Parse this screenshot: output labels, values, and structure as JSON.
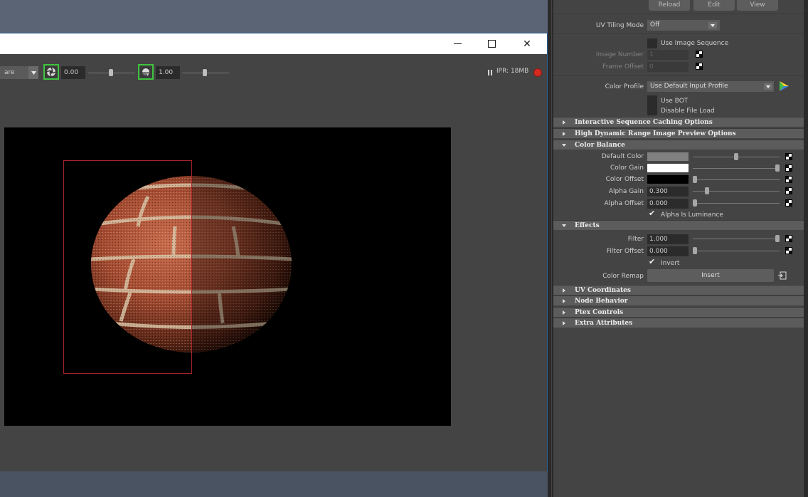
{
  "render_view": {
    "toolbar": {
      "camera_dropdown_value": "are",
      "exposure_value": "0.00",
      "gamma_value": "1.00",
      "ipr_status": "IPR: 18MB",
      "exposure_slider_level": 0.5,
      "gamma_slider_level": 0.5
    },
    "window_buttons": {
      "minimize": "—",
      "close": "✕"
    }
  },
  "attribute_editor": {
    "top_buttons": [
      "Reload",
      "Edit",
      "View"
    ],
    "uv_tiling_mode": {
      "label": "UV Tiling Mode",
      "value": "Off"
    },
    "use_image_sequence": {
      "label": "Use Image Sequence",
      "checked": false
    },
    "image_number": {
      "label": "Image Number",
      "value": "1"
    },
    "frame_offset": {
      "label": "Frame Offset",
      "value": "0"
    },
    "color_profile": {
      "label": "Color Profile",
      "value": "Use Default Input Profile"
    },
    "use_bot": {
      "label": "Use BOT",
      "checked": false
    },
    "disable_file_load": {
      "label": "Disable File Load",
      "checked": false
    },
    "sections": {
      "interactive_caching": "Interactive Sequence Caching Options",
      "hdr_preview": "High Dynamic Range Image Preview Options",
      "color_balance": "Color Balance",
      "effects": "Effects",
      "uv_coordinates": "UV Coordinates",
      "node_behavior": "Node Behavior",
      "ptex_controls": "Ptex Controls",
      "extra_attributes": "Extra Attributes"
    },
    "color_balance": {
      "default_color": {
        "label": "Default Color",
        "color": "#808080",
        "slider_level": 0.5
      },
      "color_gain": {
        "label": "Color Gain",
        "color": "#ffffff",
        "slider_level": 1.0
      },
      "color_offset": {
        "label": "Color Offset",
        "color": "#000000",
        "slider_level": 0.0
      },
      "alpha_gain": {
        "label": "Alpha Gain",
        "value": "0.300",
        "slider_level": 0.15
      },
      "alpha_offset": {
        "label": "Alpha Offset",
        "value": "0.000",
        "slider_level": 0.0
      },
      "alpha_is_luminance": {
        "label": "Alpha Is Luminance",
        "checked": true
      }
    },
    "effects": {
      "filter": {
        "label": "Filter",
        "value": "1.000",
        "slider_level": 1.0
      },
      "filter_offset": {
        "label": "Filter Offset",
        "value": "0.000",
        "slider_level": 0.0
      },
      "invert": {
        "label": "Invert",
        "checked": true
      },
      "color_remap": {
        "label": "Color Remap",
        "button": "Insert"
      }
    }
  },
  "colors": {
    "accent_green": "#3fc43f",
    "record_red": "#d62a1f",
    "region_red": "#a8232a",
    "status_green": "#b7e04a"
  }
}
